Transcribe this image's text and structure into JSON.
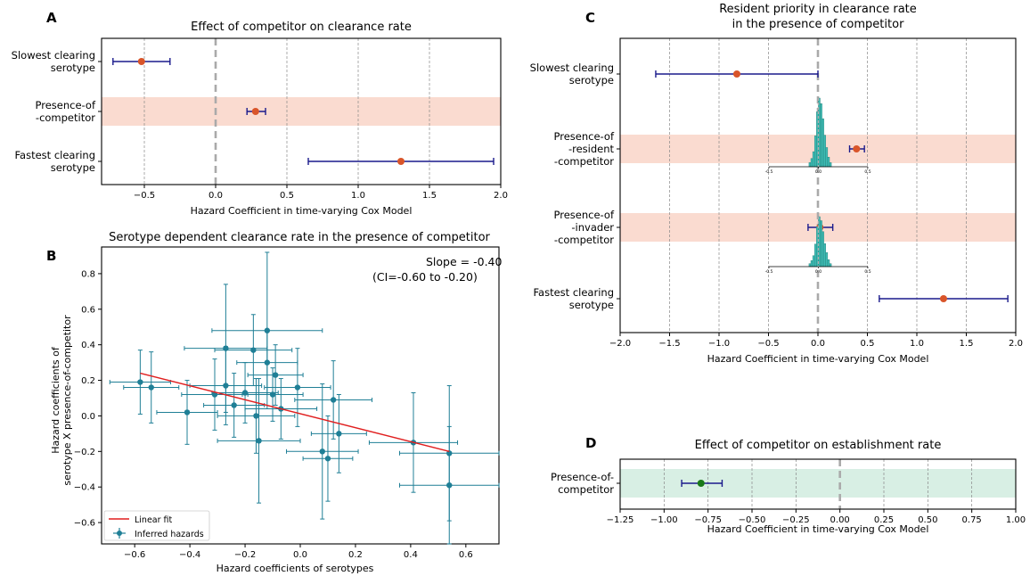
{
  "colors": {
    "point": "#d9552a",
    "errbar": "#1a1a8c",
    "band": "#fadbd0",
    "band_green": "#d8efe4",
    "teal": "#1f7f96",
    "fit": "#e01f1f",
    "hist": "#3dbdb5",
    "green_point": "#1a7a1a",
    "zero_line": "#aaaaaa"
  },
  "panels": {
    "A": {
      "letter": "A",
      "title": "Effect of competitor on clearance rate",
      "xlabel": "Hazard Coefficient in time-varying Cox Model"
    },
    "B": {
      "letter": "B",
      "title": "Serotype dependent clearance rate in the presence of competitor",
      "xlabel": "Hazard coefficients of serotypes",
      "ylabel1": "Hazard coefficients of",
      "ylabel2": "serotype X presence-of-competitor",
      "slope_line1": "Slope = -0.40",
      "slope_line2": "(CI=-0.60 to -0.20)",
      "legend_fit": "Linear fit",
      "legend_points": "Inferred hazards"
    },
    "C": {
      "letter": "C",
      "title1": "Resident priority in clearance rate",
      "title2": "in the presence of competitor",
      "xlabel": "Hazard Coefficient in time-varying Cox Model"
    },
    "D": {
      "letter": "D",
      "title": "Effect of competitor on establishment rate",
      "xlabel": "Hazard Coefficient in time-varying Cox Model"
    }
  },
  "chart_data": [
    {
      "panel": "A",
      "type": "scatter",
      "title": "Effect of competitor on clearance rate",
      "xlabel": "Hazard Coefficient in time-varying Cox Model",
      "xlim": [
        -0.8,
        2.0
      ],
      "xticks": [
        "−0.5",
        "0.0",
        "0.5",
        "1.0",
        "1.5",
        "2.0"
      ],
      "xtick_values": [
        -0.5,
        0.0,
        0.5,
        1.0,
        1.5,
        2.0
      ],
      "rows": [
        {
          "label": [
            "Slowest clearing",
            "serotype"
          ],
          "value": -0.52,
          "ci": [
            -0.72,
            -0.32
          ],
          "highlight": false
        },
        {
          "label": [
            "Presence-of",
            "-competitor"
          ],
          "value": 0.28,
          "ci": [
            0.22,
            0.35
          ],
          "highlight": true
        },
        {
          "label": [
            "Fastest clearing",
            "serotype"
          ],
          "value": 1.3,
          "ci": [
            0.65,
            1.95
          ],
          "highlight": false
        }
      ]
    },
    {
      "panel": "B",
      "type": "scatter",
      "title": "Serotype dependent clearance rate in the presence of competitor",
      "xlabel": "Hazard coefficients of serotypes",
      "ylabel": "Hazard coefficients of serotype X presence-of-competitor",
      "xlim": [
        -0.72,
        0.72
      ],
      "ylim": [
        -0.72,
        0.95
      ],
      "xticks": [
        "−0.6",
        "−0.4",
        "−0.2",
        "0.0",
        "0.2",
        "0.4",
        "0.6"
      ],
      "xtick_values": [
        -0.6,
        -0.4,
        -0.2,
        0.0,
        0.2,
        0.4,
        0.6
      ],
      "yticks": [
        "−0.6",
        "−0.4",
        "−0.2",
        "0.0",
        "0.2",
        "0.4",
        "0.6",
        "0.8"
      ],
      "ytick_values": [
        -0.6,
        -0.4,
        -0.2,
        0.0,
        0.2,
        0.4,
        0.6,
        0.8
      ],
      "fit": {
        "x": [
          -0.58,
          0.54
        ],
        "y": [
          0.24,
          -0.2
        ]
      },
      "points": [
        {
          "x": -0.58,
          "y": 0.19,
          "xerr": 0.11,
          "yerr": 0.18
        },
        {
          "x": -0.54,
          "y": 0.16,
          "xerr": 0.1,
          "yerr": 0.2
        },
        {
          "x": -0.41,
          "y": 0.02,
          "xerr": 0.11,
          "yerr": 0.18
        },
        {
          "x": -0.31,
          "y": 0.12,
          "xerr": 0.12,
          "yerr": 0.2
        },
        {
          "x": -0.27,
          "y": 0.38,
          "xerr": 0.15,
          "yerr": 0.36
        },
        {
          "x": -0.27,
          "y": 0.17,
          "xerr": 0.13,
          "yerr": 0.22
        },
        {
          "x": -0.24,
          "y": 0.06,
          "xerr": 0.11,
          "yerr": 0.18
        },
        {
          "x": -0.2,
          "y": 0.13,
          "xerr": 0.12,
          "yerr": 0.17
        },
        {
          "x": -0.17,
          "y": 0.37,
          "xerr": 0.14,
          "yerr": 0.2
        },
        {
          "x": -0.16,
          "y": 0.0,
          "xerr": 0.14,
          "yerr": 0.21
        },
        {
          "x": -0.15,
          "y": -0.14,
          "xerr": 0.15,
          "yerr": 0.35
        },
        {
          "x": -0.12,
          "y": 0.48,
          "xerr": 0.2,
          "yerr": 0.44
        },
        {
          "x": -0.12,
          "y": 0.3,
          "xerr": 0.11,
          "yerr": 0.18
        },
        {
          "x": -0.1,
          "y": 0.12,
          "xerr": 0.11,
          "yerr": 0.15
        },
        {
          "x": -0.09,
          "y": 0.23,
          "xerr": 0.1,
          "yerr": 0.17
        },
        {
          "x": -0.07,
          "y": 0.04,
          "xerr": 0.13,
          "yerr": 0.17
        },
        {
          "x": -0.01,
          "y": 0.16,
          "xerr": 0.12,
          "yerr": 0.22
        },
        {
          "x": 0.08,
          "y": -0.2,
          "xerr": 0.13,
          "yerr": 0.38
        },
        {
          "x": 0.1,
          "y": -0.24,
          "xerr": 0.09,
          "yerr": 0.24
        },
        {
          "x": 0.12,
          "y": 0.09,
          "xerr": 0.14,
          "yerr": 0.22
        },
        {
          "x": 0.14,
          "y": -0.1,
          "xerr": 0.1,
          "yerr": 0.22
        },
        {
          "x": 0.41,
          "y": -0.15,
          "xerr": 0.16,
          "yerr": 0.28
        },
        {
          "x": 0.54,
          "y": -0.21,
          "xerr": 0.18,
          "yerr": 0.38
        },
        {
          "x": 0.54,
          "y": -0.39,
          "xerr": 0.18,
          "yerr": 0.33
        }
      ]
    },
    {
      "panel": "C",
      "type": "scatter",
      "title": "Resident priority in clearance rate in the presence of competitor",
      "xlabel": "Hazard Coefficient in time-varying Cox Model",
      "xlim": [
        -2.0,
        2.0
      ],
      "xticks": [
        "−2.0",
        "−1.5",
        "−1.0",
        "−0.5",
        "0.0",
        "0.5",
        "1.0",
        "1.5",
        "2.0"
      ],
      "xtick_values": [
        -2.0,
        -1.5,
        -1.0,
        -0.5,
        0.0,
        0.5,
        1.0,
        1.5,
        2.0
      ],
      "rows": [
        {
          "label": [
            "Slowest clearing",
            "serotype"
          ],
          "value": -0.82,
          "ci": [
            -1.64,
            0.0
          ],
          "highlight": false
        },
        {
          "label": [
            "Presence-of",
            "-resident",
            "-competitor"
          ],
          "value": 0.39,
          "ci": [
            0.32,
            0.47
          ],
          "highlight": true
        },
        {
          "label": [
            "Presence-of",
            "-invader",
            "-competitor"
          ],
          "value": 0.02,
          "ci": [
            -0.1,
            0.15
          ],
          "highlight": true
        },
        {
          "label": [
            "Fastest clearing",
            "serotype"
          ],
          "value": 1.27,
          "ci": [
            0.62,
            1.92
          ],
          "highlight": false
        }
      ],
      "inset_ticks": [
        "-0.5",
        "0.0",
        "0.5"
      ],
      "inset_tick_values": [
        -0.5,
        0.0,
        0.5
      ]
    },
    {
      "panel": "D",
      "type": "scatter",
      "title": "Effect of competitor on establishment rate",
      "xlabel": "Hazard Coefficient in time-varying Cox Model",
      "xlim": [
        -1.25,
        1.0
      ],
      "xticks": [
        "−1.25",
        "−1.00",
        "−0.75",
        "−0.50",
        "−0.25",
        "0.00",
        "0.25",
        "0.50",
        "0.75",
        "1.00"
      ],
      "xtick_values": [
        -1.25,
        -1.0,
        -0.75,
        -0.5,
        -0.25,
        0.0,
        0.25,
        0.5,
        0.75,
        1.0
      ],
      "rows": [
        {
          "label": [
            "Presence-of-",
            "competitor"
          ],
          "value": -0.79,
          "ci": [
            -0.9,
            -0.67
          ],
          "highlight": true
        }
      ]
    }
  ]
}
